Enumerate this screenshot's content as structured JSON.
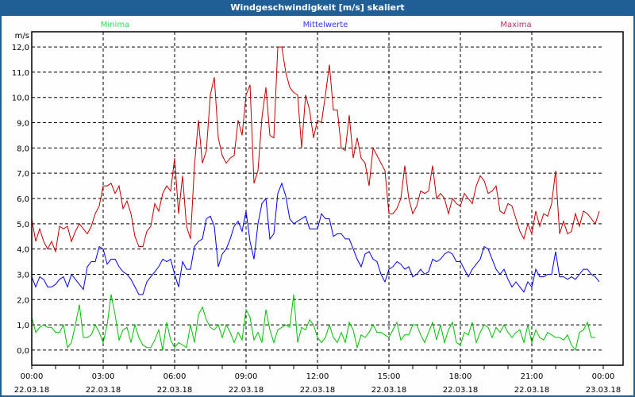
{
  "window": {
    "title": "Windgeschwindigkeit [m/s] skaliert"
  },
  "chart_data": {
    "type": "line",
    "title": "Windgeschwindigkeit [m/s] skaliert",
    "ylabel": "m/s",
    "xlabel": "",
    "ylim": [
      -0.6,
      12.6
    ],
    "yticks": [
      "0,0",
      "1,0",
      "2,0",
      "3,0",
      "4,0",
      "5,0",
      "6,0",
      "7,0",
      "8,0",
      "9,0",
      "10,0",
      "11,0",
      "12,0"
    ],
    "xlim_hours": [
      0,
      24
    ],
    "xticks": [
      {
        "time": "00:00",
        "date": "22.03.18"
      },
      {
        "time": "03:00",
        "date": "22.03.18"
      },
      {
        "time": "06:00",
        "date": "22.03.18"
      },
      {
        "time": "09:00",
        "date": "22.03.18"
      },
      {
        "time": "12:00",
        "date": "22.03.18"
      },
      {
        "time": "15:00",
        "date": "22.03.18"
      },
      {
        "time": "18:00",
        "date": "22.03.18"
      },
      {
        "time": "21:00",
        "date": "22.03.18"
      },
      {
        "time": "00:00",
        "date": "23.03.18"
      }
    ],
    "grid": true,
    "legend_position": "top",
    "interval_minutes": 10,
    "series": [
      {
        "name": "Minima",
        "color": "#00c000",
        "label_color": "#33dd55",
        "values": [
          1.3,
          0.7,
          0.9,
          1.0,
          0.9,
          0.9,
          0.7,
          0.7,
          1.0,
          0.1,
          0.3,
          1.0,
          1.8,
          0.5,
          0.5,
          0.6,
          1.0,
          0.7,
          0.3,
          1.0,
          2.2,
          1.4,
          0.4,
          0.8,
          0.9,
          0.3,
          1.0,
          0.5,
          0.2,
          0.1,
          0.1,
          0.4,
          0.8,
          0.0,
          1.1,
          0.4,
          0.1,
          0.3,
          0.2,
          0.1,
          1.0,
          0.3,
          1.4,
          1.7,
          1.2,
          0.9,
          0.8,
          1.0,
          0.5,
          1.0,
          0.7,
          0.3,
          0.7,
          0.4,
          1.6,
          1.3,
          0.4,
          0.7,
          0.3,
          1.6,
          0.8,
          0.3,
          0.8,
          0.9,
          1.0,
          0.9,
          2.2,
          0.3,
          0.9,
          0.8,
          1.2,
          1.0,
          0.5,
          0.3,
          0.5,
          1.0,
          0.5,
          0.3,
          0.7,
          0.3,
          1.1,
          0.8,
          0.1,
          0.6,
          0.5,
          0.7,
          1.0,
          0.7,
          0.7,
          0.6,
          0.5,
          0.8,
          1.1,
          0.4,
          0.6,
          0.6,
          1.0,
          1.0,
          0.6,
          0.3,
          0.7,
          1.1,
          0.4,
          1.0,
          0.3,
          0.8,
          1.1,
          0.3,
          0.2,
          0.7,
          0.6,
          1.1,
          0.3,
          0.7,
          1.0,
          0.9,
          0.5,
          0.9,
          0.7,
          1.0,
          0.7,
          0.5,
          0.7,
          0.8,
          0.3,
          1.0,
          0.3,
          0.8,
          0.5,
          0.4,
          0.7,
          0.6,
          0.5,
          0.5,
          0.4,
          0.6,
          0.2,
          0.0,
          0.7,
          0.8,
          1.1,
          0.5,
          0.5
        ]
      },
      {
        "name": "Mittelwerte",
        "color": "#0000ee",
        "label_color": "#3333ff",
        "values": [
          2.9,
          2.5,
          2.9,
          2.8,
          2.5,
          2.5,
          2.6,
          2.8,
          2.9,
          2.5,
          3.0,
          2.8,
          2.6,
          2.4,
          3.3,
          3.5,
          3.5,
          4.1,
          4.0,
          3.4,
          3.6,
          3.6,
          3.3,
          3.1,
          3.0,
          2.8,
          2.5,
          2.2,
          2.2,
          2.7,
          2.9,
          3.1,
          3.3,
          3.6,
          3.5,
          3.6,
          3.0,
          2.5,
          3.5,
          3.2,
          3.2,
          4.1,
          4.3,
          4.4,
          5.2,
          5.3,
          4.9,
          3.3,
          3.8,
          4.0,
          4.4,
          4.9,
          5.1,
          4.7,
          5.5,
          4.3,
          3.6,
          5.0,
          5.8,
          6.0,
          4.4,
          4.6,
          6.2,
          6.6,
          6.1,
          5.2,
          5.0,
          5.1,
          5.2,
          5.3,
          4.8,
          4.8,
          4.8,
          5.4,
          5.2,
          5.2,
          4.5,
          4.6,
          4.6,
          4.4,
          4.4,
          4.0,
          3.6,
          3.3,
          3.8,
          3.9,
          3.6,
          3.5,
          3.0,
          2.7,
          3.2,
          3.3,
          3.5,
          3.4,
          3.2,
          3.3,
          2.9,
          3.0,
          3.2,
          3.0,
          3.1,
          3.6,
          3.5,
          3.6,
          3.8,
          3.9,
          3.8,
          3.5,
          3.5,
          3.2,
          2.9,
          3.2,
          3.4,
          3.6,
          4.1,
          4.0,
          3.6,
          3.2,
          3.0,
          3.2,
          2.8,
          2.5,
          2.7,
          2.5,
          2.3,
          2.7,
          2.5,
          3.2,
          2.9,
          2.9,
          3.0,
          3.0,
          3.9,
          2.9,
          2.9,
          2.8,
          2.9,
          2.8,
          3.0,
          3.2,
          3.2,
          3.0,
          2.9,
          2.7
        ]
      },
      {
        "name": "Maxima",
        "color": "#c00000",
        "label_color": "#b8306a",
        "values": [
          5.2,
          4.3,
          4.8,
          4.3,
          4.0,
          4.3,
          3.9,
          4.9,
          4.8,
          4.9,
          4.3,
          4.7,
          5.0,
          4.8,
          4.6,
          4.9,
          5.4,
          5.7,
          6.5,
          6.5,
          6.6,
          6.2,
          6.5,
          5.6,
          5.9,
          5.4,
          4.5,
          4.1,
          4.1,
          4.7,
          4.9,
          5.8,
          5.5,
          6.2,
          6.5,
          6.3,
          7.6,
          5.4,
          6.9,
          4.9,
          4.4,
          7.3,
          9.1,
          7.4,
          7.9,
          10.1,
          10.8,
          8.4,
          7.7,
          7.4,
          7.6,
          7.7,
          9.1,
          8.5,
          10.1,
          10.5,
          6.6,
          7.1,
          9.2,
          10.4,
          8.5,
          8.4,
          12.0,
          12.0,
          11.0,
          10.4,
          10.2,
          10.1,
          8.0,
          10.1,
          9.5,
          8.4,
          9.1,
          9.0,
          10.1,
          11.3,
          9.5,
          9.5,
          8.0,
          7.9,
          9.3,
          7.6,
          8.4,
          7.6,
          7.4,
          6.5,
          8.0,
          7.7,
          7.4,
          7.1,
          5.4,
          5.4,
          5.6,
          6.0,
          7.3,
          6.0,
          5.4,
          5.7,
          6.3,
          6.2,
          6.3,
          7.3,
          6.0,
          6.2,
          6.0,
          5.4,
          6.0,
          5.8,
          5.7,
          6.2,
          6.0,
          5.8,
          6.5,
          6.9,
          6.7,
          6.2,
          6.3,
          6.5,
          5.5,
          5.4,
          5.8,
          5.7,
          5.2,
          4.7,
          4.4,
          5.0,
          4.6,
          5.5,
          4.9,
          5.4,
          5.3,
          5.8,
          7.1,
          4.6,
          5.1,
          4.6,
          4.7,
          5.4,
          4.9,
          5.5,
          5.4,
          5.2,
          5.0,
          5.5
        ]
      }
    ]
  }
}
